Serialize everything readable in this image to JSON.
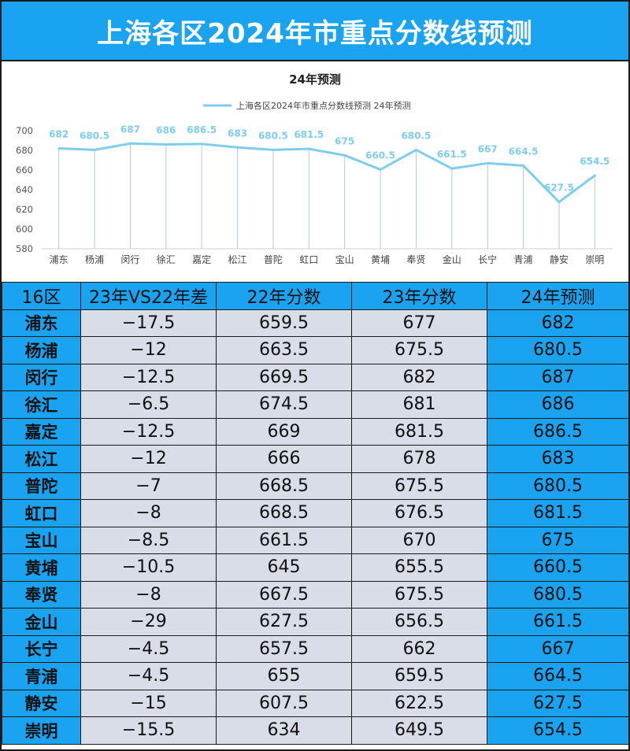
{
  "title": "上海各区2024年市重点分数线预测",
  "chart_data": {
    "type": "line",
    "title": "24年预测",
    "legend": "上海各区2024年市重点分数线预测 24年预测",
    "legend_position": "top",
    "categories": [
      "浦东",
      "杨浦",
      "闵行",
      "徐汇",
      "嘉定",
      "松江",
      "普陀",
      "虹口",
      "宝山",
      "黄埔",
      "奉贤",
      "金山",
      "长宁",
      "青浦",
      "静安",
      "崇明"
    ],
    "series": [
      {
        "name": "上海各区2024年市重点分数线预测 24年预测",
        "values": [
          682,
          680.5,
          687,
          686,
          686.5,
          683,
          680.5,
          681.5,
          675,
          660.5,
          680.5,
          661.5,
          667,
          664.5,
          627.5,
          654.5
        ]
      }
    ],
    "ylim": [
      580,
      700
    ],
    "yticks": [
      580,
      600,
      620,
      640,
      660,
      680,
      700
    ],
    "grid": false,
    "color": "#7ecdf0",
    "drop_lines": true,
    "data_labels": true
  },
  "table": {
    "headers": [
      "16区",
      "23年VS22年差",
      "22年分数",
      "23年分数",
      "24年预测"
    ],
    "rows": [
      [
        "浦东",
        "−17.5",
        "659.5",
        "677",
        "682"
      ],
      [
        "杨浦",
        "−12",
        "663.5",
        "675.5",
        "680.5"
      ],
      [
        "闵行",
        "−12.5",
        "669.5",
        "682",
        "687"
      ],
      [
        "徐汇",
        "−6.5",
        "674.5",
        "681",
        "686"
      ],
      [
        "嘉定",
        "−12.5",
        "669",
        "681.5",
        "686.5"
      ],
      [
        "松江",
        "−12",
        "666",
        "678",
        "683"
      ],
      [
        "普陀",
        "−7",
        "668.5",
        "675.5",
        "680.5"
      ],
      [
        "虹口",
        "−8",
        "668.5",
        "676.5",
        "681.5"
      ],
      [
        "宝山",
        "−8.5",
        "661.5",
        "670",
        "675"
      ],
      [
        "黄埔",
        "−10.5",
        "645",
        "655.5",
        "660.5"
      ],
      [
        "奉贤",
        "−8",
        "667.5",
        "675.5",
        "680.5"
      ],
      [
        "金山",
        "−29",
        "627.5",
        "656.5",
        "661.5"
      ],
      [
        "长宁",
        "−4.5",
        "657.5",
        "662",
        "667"
      ],
      [
        "青浦",
        "−4.5",
        "655",
        "659.5",
        "664.5"
      ],
      [
        "静安",
        "−15",
        "607.5",
        "622.5",
        "627.5"
      ],
      [
        "崇明",
        "−15.5",
        "634",
        "649.5",
        "654.5"
      ]
    ]
  }
}
